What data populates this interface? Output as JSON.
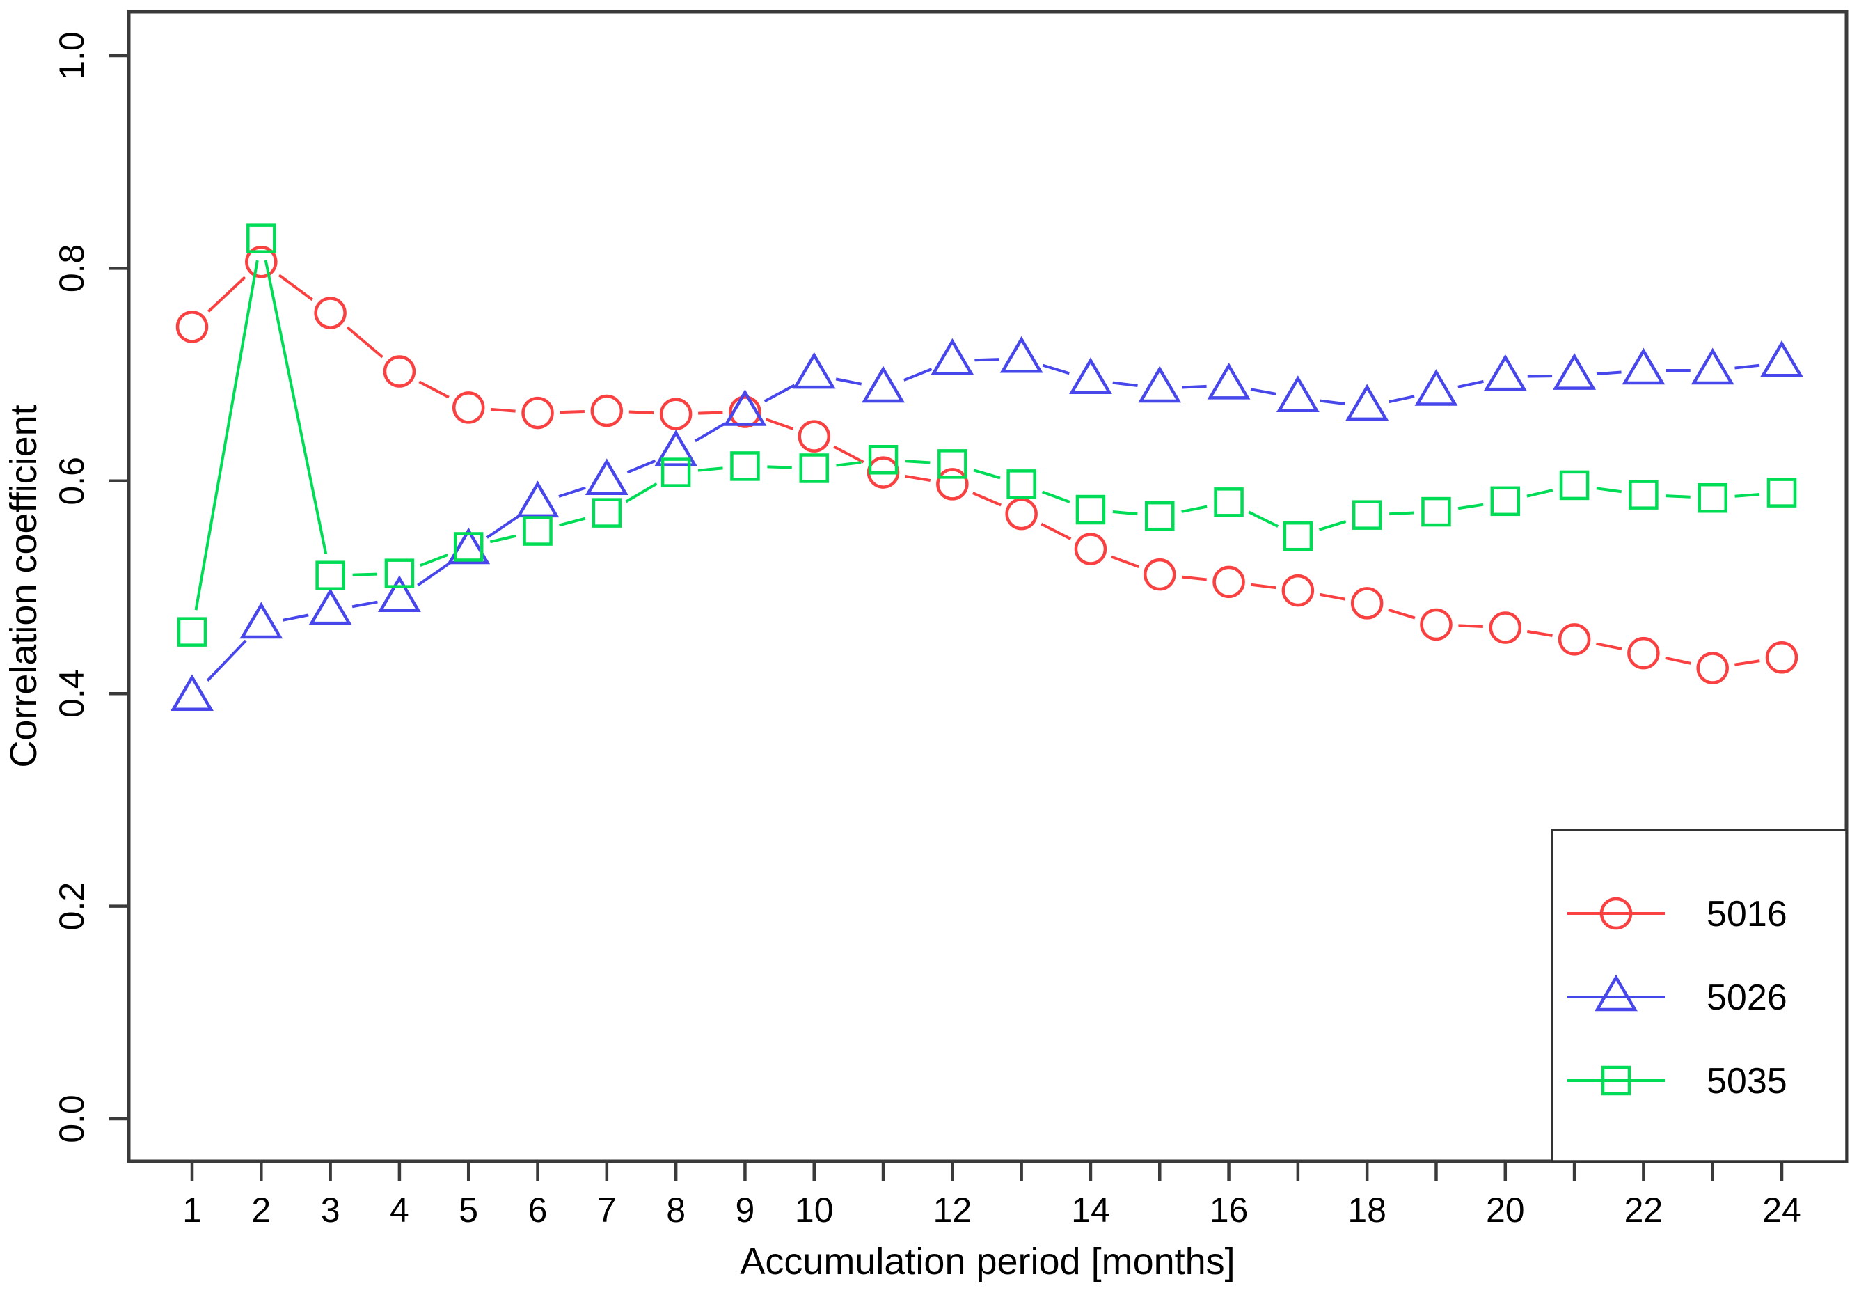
{
  "chart_data": {
    "type": "line",
    "x_label": "Accumulation period [months]",
    "y_label": "Correlation coefficient",
    "x": [
      1,
      2,
      3,
      4,
      5,
      6,
      7,
      8,
      9,
      10,
      11,
      12,
      13,
      14,
      15,
      16,
      17,
      18,
      19,
      20,
      21,
      22,
      23,
      24
    ],
    "x_ticks_all": [
      1,
      2,
      3,
      4,
      5,
      6,
      7,
      8,
      9,
      10,
      11,
      12,
      13,
      14,
      15,
      16,
      17,
      18,
      19,
      20,
      21,
      22,
      23,
      24
    ],
    "x_tick_labels_shown": [
      "1",
      "2",
      "3",
      "4",
      "5",
      "6",
      "7",
      "8",
      "9",
      "10",
      "12",
      "14",
      "16",
      "18",
      "20",
      "22",
      "24"
    ],
    "y_ticks": [
      "0.0",
      "0.2",
      "0.4",
      "0.6",
      "0.8",
      "1.0"
    ],
    "xlim": [
      0.1,
      24.9
    ],
    "ylim": [
      -0.04,
      1.04
    ],
    "grid": false,
    "legend_position": "bottom-right",
    "series": [
      {
        "name": "5016",
        "marker": "circle",
        "color": "#FA4141",
        "values": [
          0.745,
          0.806,
          0.758,
          0.703,
          0.669,
          0.664,
          0.666,
          0.663,
          0.665,
          0.642,
          0.608,
          0.597,
          0.569,
          0.536,
          0.512,
          0.505,
          0.497,
          0.485,
          0.465,
          0.462,
          0.451,
          0.438,
          0.424,
          0.434
        ]
      },
      {
        "name": "5026",
        "marker": "triangle",
        "color": "#4747EC",
        "values": [
          0.397,
          0.465,
          0.478,
          0.49,
          0.535,
          0.579,
          0.6,
          0.627,
          0.665,
          0.7,
          0.687,
          0.713,
          0.715,
          0.695,
          0.687,
          0.69,
          0.678,
          0.67,
          0.684,
          0.698,
          0.699,
          0.704,
          0.704,
          0.711
        ]
      },
      {
        "name": "5035",
        "marker": "square",
        "color": "#00DC55",
        "values": [
          0.458,
          0.828,
          0.511,
          0.513,
          0.538,
          0.553,
          0.57,
          0.608,
          0.614,
          0.612,
          0.62,
          0.616,
          0.597,
          0.573,
          0.567,
          0.58,
          0.548,
          0.568,
          0.571,
          0.581,
          0.596,
          0.587,
          0.584,
          0.589
        ]
      }
    ]
  },
  "styles": {
    "axis_color": "#3a3a3a",
    "text_color": "#000000",
    "legend_border_color": "#333333"
  }
}
